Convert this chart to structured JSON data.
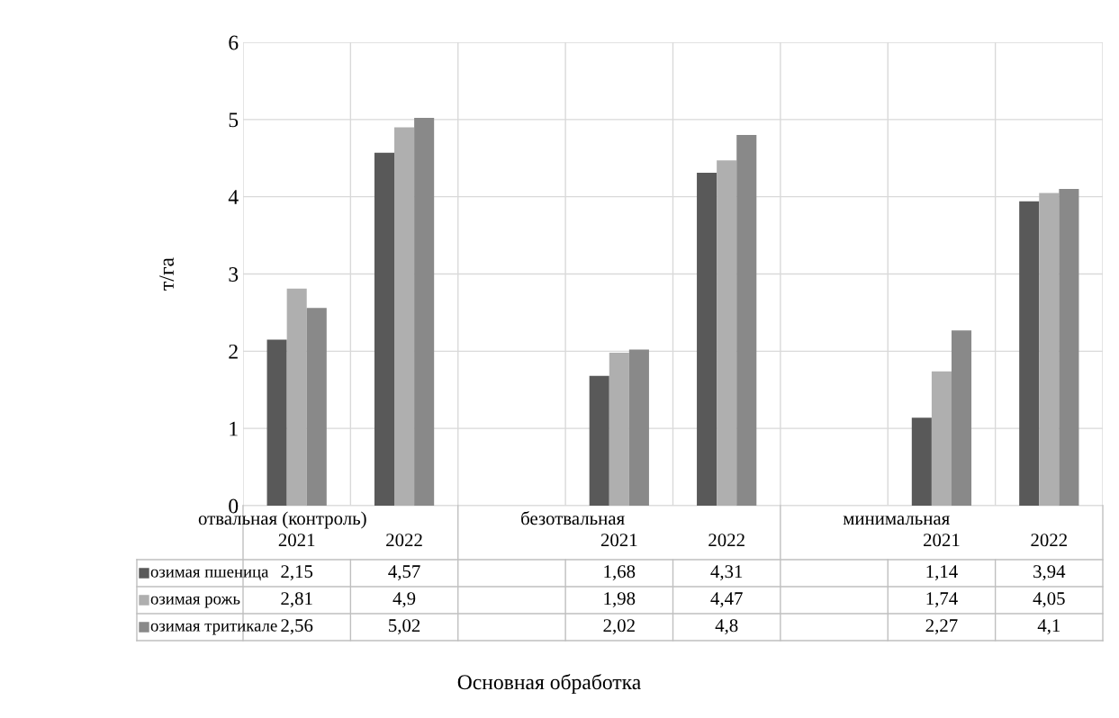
{
  "chart_data": {
    "type": "bar",
    "ylabel": "т/га",
    "categories": [
      "2021",
      "2022",
      null,
      "2021",
      "2022",
      null,
      "2021",
      "2022"
    ],
    "annotations": [
      "отвальная (контроль)",
      "безотвальная",
      "минимальная",
      "Основная обработка"
    ],
    "series": [
      {
        "name": "озимая пшеница",
        "color": "#595959",
        "values": [
          2.15,
          4.57,
          null,
          1.68,
          4.31,
          null,
          1.14,
          3.94
        ],
        "value_labels": [
          "2,15",
          "4,57",
          null,
          "1,68",
          "4,31",
          null,
          "1,14",
          "3,94"
        ]
      },
      {
        "name": "озимая рожь",
        "color": "#afafaf",
        "values": [
          2.81,
          4.9,
          null,
          1.98,
          4.47,
          null,
          1.74,
          4.05
        ],
        "value_labels": [
          "2,81",
          "4,9",
          null,
          "1,98",
          "4,47",
          null,
          "1,74",
          "4,05"
        ]
      },
      {
        "name": "озимая тритикале",
        "color": "#898989",
        "values": [
          2.56,
          5.02,
          null,
          2.02,
          4.8,
          null,
          2.27,
          4.1
        ],
        "value_labels": [
          "2,56",
          "5,02",
          null,
          "2,02",
          "4,8",
          null,
          "2,27",
          "4,1"
        ]
      }
    ],
    "ylim": [
      0,
      6
    ],
    "yticks": [
      0,
      1,
      2,
      3,
      4,
      5,
      6
    ],
    "grid": true,
    "legend": "bottom left"
  }
}
